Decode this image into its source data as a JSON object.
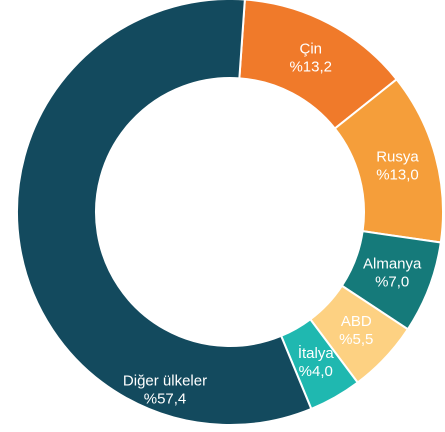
{
  "chart_data": {
    "type": "donut",
    "categories": [
      "Çin",
      "Rusya",
      "Almanya",
      "ABD",
      "İtalya",
      "Diğer ülkeler"
    ],
    "values": [
      13.2,
      13.0,
      7.0,
      5.5,
      4.0,
      57.4
    ],
    "value_labels": [
      "%13,2",
      "%13,0",
      "%7,0",
      "%5,5",
      "%4,0",
      "%57,4"
    ],
    "colors": [
      "#f07a2a",
      "#f59e3a",
      "#157a7a",
      "#fdd182",
      "#1fb8b0",
      "#134a5e"
    ]
  }
}
